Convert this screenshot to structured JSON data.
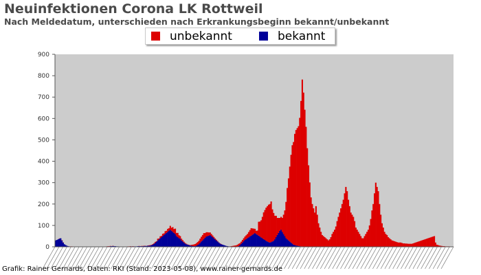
{
  "chart_data": {
    "type": "bar",
    "stacked": true,
    "title": "Neuinfektionen Corona LK Rottweil",
    "subtitle": "Nach Meldedatum, unterschieden nach Erkrankungsbeginn bekannt/unbekannt",
    "xlabel": "",
    "ylabel": "",
    "ylim": [
      0,
      900
    ],
    "yticks": [
      0,
      100,
      200,
      300,
      400,
      500,
      600,
      700,
      800,
      900
    ],
    "grid": false,
    "legend_position": "top-center",
    "background": "#cccccc",
    "series": [
      {
        "name": "unbekannt",
        "color": "#dd0000",
        "values": [
          0,
          0,
          0,
          1,
          0,
          1,
          1,
          0,
          0,
          0,
          0,
          0,
          1,
          1,
          0,
          0,
          0,
          0,
          0,
          0,
          0,
          0,
          0,
          0,
          0,
          0,
          1,
          1,
          0,
          1,
          0,
          0,
          0,
          1,
          0,
          0,
          1,
          1,
          0,
          0,
          0,
          1,
          1,
          1,
          1,
          0,
          1,
          0,
          0,
          0,
          0,
          0,
          0,
          0,
          0,
          0,
          0,
          0,
          1,
          1,
          1,
          0,
          1,
          0,
          0,
          0,
          0,
          1,
          0,
          1,
          1,
          1,
          1,
          0,
          1,
          2,
          2,
          1,
          3,
          3,
          5,
          2,
          8,
          4,
          9,
          6,
          11,
          8,
          13,
          10,
          14,
          12,
          18,
          14,
          22,
          18,
          25,
          15,
          20,
          14,
          12,
          8,
          6,
          4,
          3,
          2,
          1,
          1,
          2,
          4,
          6,
          8,
          10,
          12,
          14,
          16,
          20,
          22,
          25,
          28,
          22,
          20,
          18,
          15,
          12,
          10,
          8,
          6,
          4,
          3,
          2,
          1,
          1,
          1,
          0,
          0,
          0,
          0,
          0,
          0,
          1,
          2,
          3,
          4,
          5,
          6,
          8,
          10,
          9,
          10,
          12,
          14,
          16,
          18,
          20,
          25,
          30,
          35,
          30,
          25,
          20,
          15,
          20,
          65,
          70,
          80,
          100,
          125,
          140,
          155,
          165,
          175,
          180,
          190,
          150,
          130,
          110,
          100,
          80,
          70,
          60,
          60,
          65,
          90,
          120,
          170,
          240,
          290,
          350,
          410,
          460,
          480,
          520,
          540,
          550,
          560,
          600,
          680,
          780,
          720,
          640,
          560,
          460,
          380,
          300,
          230,
          200,
          180,
          160,
          190,
          150,
          110,
          90,
          70,
          55,
          50,
          45,
          40,
          35,
          30,
          35,
          45,
          60,
          70,
          80,
          95,
          120,
          140,
          160,
          180,
          200,
          220,
          250,
          280,
          260,
          220,
          190,
          160,
          150,
          140,
          120,
          90,
          80,
          70,
          60,
          50,
          40,
          40,
          50,
          60,
          70,
          80,
          100,
          130,
          170,
          200,
          250,
          300,
          280,
          260,
          200,
          150,
          110,
          90,
          70,
          60,
          55,
          45,
          40,
          35,
          30,
          28,
          26,
          24,
          22,
          20,
          20,
          20,
          18,
          16,
          16,
          15,
          15,
          14,
          14,
          14,
          14,
          16,
          18,
          20,
          22,
          24,
          26,
          28,
          30,
          32,
          34,
          36,
          38,
          40,
          42,
          44,
          46,
          48,
          50,
          20,
          10,
          8,
          6,
          5,
          4,
          3,
          3,
          2,
          2,
          2,
          2,
          1,
          1,
          1
        ]
      },
      {
        "name": "bekannt",
        "color": "#000099",
        "values": [
          30,
          32,
          35,
          38,
          40,
          30,
          20,
          12,
          8,
          5,
          3,
          2,
          1,
          1,
          1,
          1,
          0,
          0,
          0,
          0,
          0,
          0,
          0,
          0,
          0,
          0,
          0,
          0,
          0,
          0,
          0,
          0,
          0,
          0,
          0,
          0,
          0,
          0,
          0,
          0,
          1,
          1,
          2,
          2,
          3,
          3,
          4,
          3,
          3,
          2,
          2,
          1,
          1,
          1,
          1,
          1,
          1,
          1,
          1,
          1,
          2,
          2,
          2,
          2,
          2,
          2,
          3,
          3,
          3,
          3,
          3,
          4,
          4,
          4,
          5,
          5,
          6,
          8,
          10,
          14,
          18,
          24,
          30,
          35,
          40,
          45,
          50,
          55,
          60,
          65,
          70,
          75,
          80,
          75,
          70,
          65,
          60,
          50,
          45,
          40,
          38,
          30,
          25,
          20,
          15,
          12,
          10,
          8,
          6,
          5,
          4,
          3,
          3,
          5,
          8,
          12,
          18,
          25,
          30,
          36,
          42,
          48,
          50,
          52,
          55,
          50,
          45,
          40,
          35,
          30,
          25,
          20,
          15,
          12,
          10,
          8,
          6,
          4,
          3,
          2,
          1,
          1,
          1,
          1,
          1,
          1,
          2,
          4,
          8,
          14,
          20,
          26,
          32,
          36,
          40,
          44,
          48,
          52,
          56,
          60,
          64,
          60,
          56,
          52,
          48,
          44,
          40,
          36,
          32,
          28,
          25,
          22,
          20,
          22,
          25,
          28,
          35,
          45,
          55,
          65,
          75,
          80,
          70,
          60,
          50,
          40,
          35,
          30,
          25,
          20,
          15,
          10,
          8,
          6,
          5,
          4,
          3,
          2,
          2,
          1,
          1,
          1,
          1,
          1,
          1,
          1,
          0,
          0,
          0,
          0,
          0,
          0,
          0,
          0,
          0,
          0,
          0,
          0,
          0,
          0,
          0,
          0,
          0,
          0,
          0,
          0,
          0,
          0,
          0,
          0,
          0,
          0,
          0,
          0,
          0,
          0,
          0,
          0,
          0,
          0,
          0,
          0,
          0,
          0,
          0,
          0,
          0,
          0,
          0,
          0,
          0,
          0,
          0,
          0,
          0,
          0,
          0,
          0,
          0,
          0,
          0,
          0,
          0,
          0,
          0,
          0,
          0,
          0,
          0,
          0,
          0,
          0,
          0,
          0,
          0,
          0,
          0,
          0,
          0,
          0,
          0,
          0,
          0,
          0,
          0,
          0,
          0,
          0,
          0,
          0,
          0,
          0,
          0,
          0,
          0,
          0,
          0,
          0,
          0,
          0,
          0,
          0,
          0,
          0,
          0,
          0,
          0,
          0,
          0,
          0,
          0,
          0,
          0,
          0,
          0,
          0,
          0,
          0,
          0,
          0,
          0,
          0,
          0,
          0,
          0,
          0,
          0,
          0,
          0,
          0,
          0,
          0,
          0,
          0,
          0,
          0,
          0,
          0,
          0,
          0,
          0,
          0,
          0,
          0,
          0,
          0,
          0
        ]
      }
    ],
    "x_tick_note": "dense illegible date labels along the x-axis"
  },
  "footer": "Grafik: Rainer Gernards, Daten: RKI (Stand: 2023-05-08), www.rainer-gernards.de"
}
